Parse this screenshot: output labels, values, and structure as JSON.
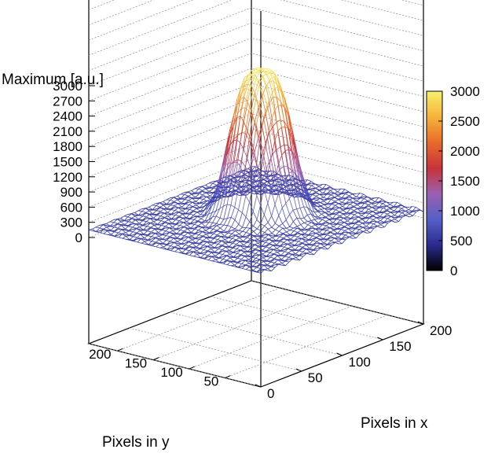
{
  "chart_data": {
    "type": "surface3d",
    "zlabel": "Maximum [a.u.]",
    "xlabel": "Pixels in x",
    "ylabel": "Pixels in y",
    "zticks": [
      0,
      300,
      600,
      900,
      1200,
      1500,
      1800,
      2100,
      2400,
      2700,
      3000
    ],
    "zlim": [
      0,
      3000
    ],
    "xticks": [
      0,
      50,
      100,
      150,
      200
    ],
    "xlim": [
      0,
      200
    ],
    "yticks": [
      50,
      100,
      150,
      200
    ],
    "ylim": [
      0,
      240
    ],
    "colorbar_ticks": [
      0,
      500,
      1000,
      1500,
      2000,
      2500,
      3000
    ],
    "colorbar_range": [
      0,
      3000
    ],
    "surface": {
      "description_of_shape": "Gaussian-like peak",
      "peak_value": 3000,
      "peak_center_x": 115,
      "peak_center_y": 130,
      "background_level": 150
    },
    "colormap": [
      "#000000",
      "#2b2b8f",
      "#5560c8",
      "#9a5fb0",
      "#c8333a",
      "#e96a2a",
      "#f6b33a",
      "#f7f06a"
    ],
    "grid": true
  }
}
